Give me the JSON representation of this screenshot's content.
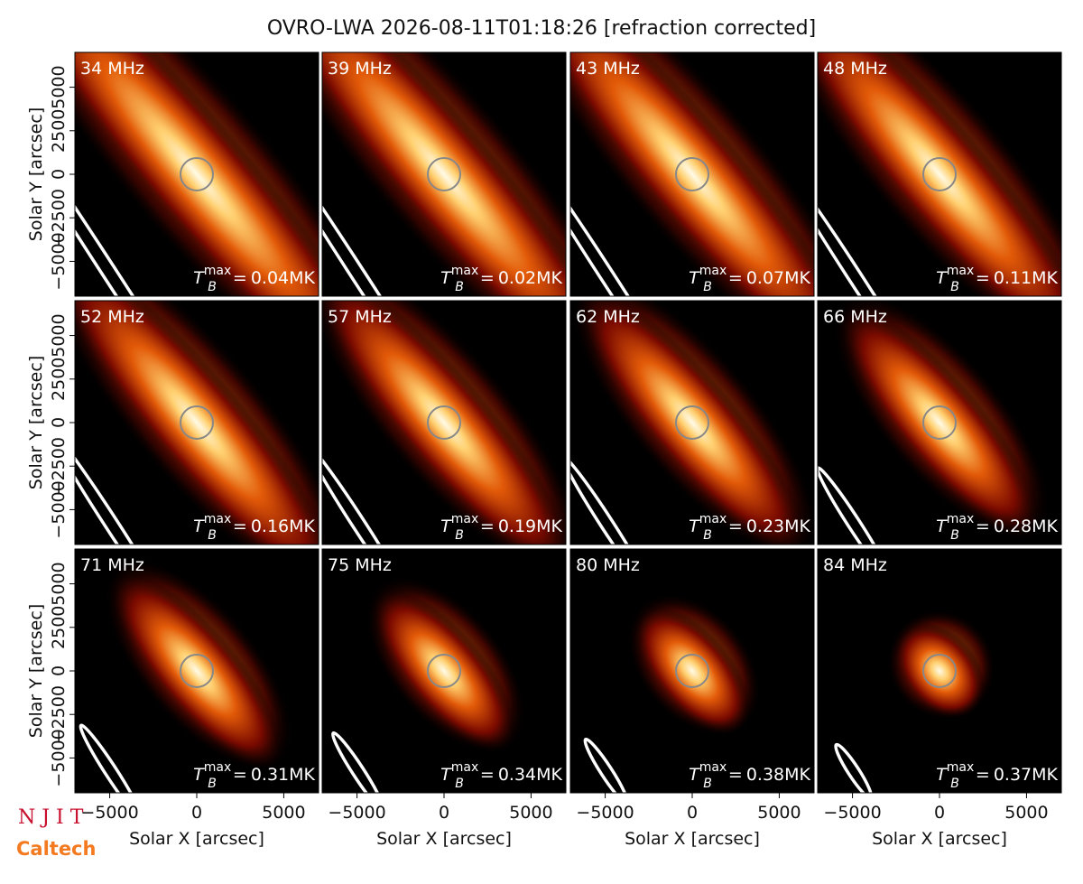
{
  "title": "OVRO-LWA 2026-08-11T01:18:26 [refraction corrected]",
  "x_label": "Solar X [arcsec]",
  "y_label": "Solar Y [arcsec]",
  "xlim": [
    -7000,
    7000
  ],
  "ylim": [
    -7000,
    7000
  ],
  "xticks": [
    {
      "value": -5000,
      "label": "−5000"
    },
    0,
    5000
  ],
  "yticks": [
    {
      "value": -5000,
      "label": "−5000"
    },
    {
      "value": -2500,
      "label": "−2500"
    },
    0,
    2500,
    5000
  ],
  "tb_label": {
    "symbol": "T",
    "sub": "B",
    "sup": "max",
    "eq": "="
  },
  "panels": [
    {
      "freq": "34 MHz",
      "tb_max": "0.04MK"
    },
    {
      "freq": "39 MHz",
      "tb_max": "0.02MK"
    },
    {
      "freq": "43 MHz",
      "tb_max": "0.07MK"
    },
    {
      "freq": "48 MHz",
      "tb_max": "0.11MK"
    },
    {
      "freq": "52 MHz",
      "tb_max": "0.16MK"
    },
    {
      "freq": "57 MHz",
      "tb_max": "0.19MK"
    },
    {
      "freq": "62 MHz",
      "tb_max": "0.23MK"
    },
    {
      "freq": "66 MHz",
      "tb_max": "0.28MK"
    },
    {
      "freq": "71 MHz",
      "tb_max": "0.31MK"
    },
    {
      "freq": "75 MHz",
      "tb_max": "0.34MK"
    },
    {
      "freq": "80 MHz",
      "tb_max": "0.38MK"
    },
    {
      "freq": "84 MHz",
      "tb_max": "0.37MK"
    }
  ],
  "logos": {
    "njit": "N J I T",
    "caltech": "Caltech"
  }
}
